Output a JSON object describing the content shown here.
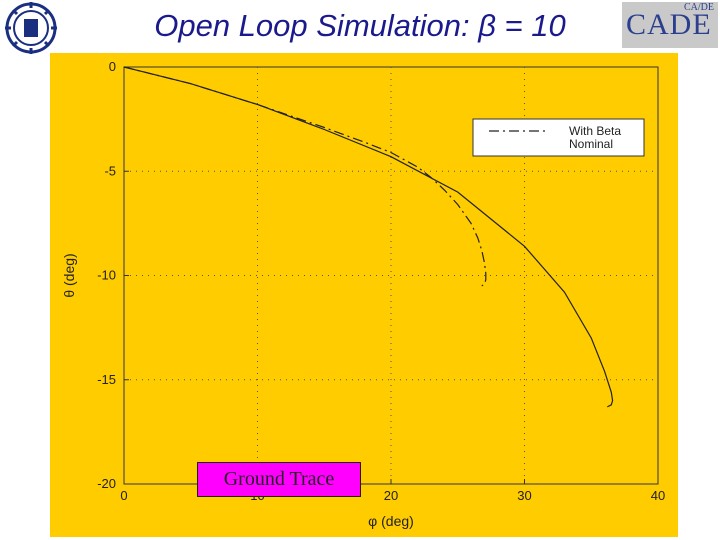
{
  "slide": {
    "title": "Open Loop Simulation: β = 10",
    "logo_right_text": "CADE",
    "logo_right_small": "CA/DE",
    "annotation": "Ground Trace"
  },
  "chart_data": {
    "type": "line",
    "xlabel": "φ (deg)",
    "ylabel": "θ (deg)",
    "xlim": [
      0,
      40
    ],
    "ylim": [
      -20,
      0
    ],
    "xticks": [
      0,
      10,
      20,
      30,
      40
    ],
    "yticks": [
      0,
      -5,
      -10,
      -15,
      -20
    ],
    "grid": true,
    "legend_position": "top-right",
    "series": [
      {
        "name": "With Beta",
        "style": "dashed",
        "x": [
          0,
          5,
          10,
          15,
          18,
          20,
          22,
          23,
          24,
          25,
          26,
          26.5,
          26.8,
          27,
          27.1,
          27.1,
          27.0,
          26.8
        ],
        "y": [
          0,
          -0.8,
          -1.8,
          -2.9,
          -3.6,
          -4.1,
          -4.8,
          -5.3,
          -5.9,
          -6.6,
          -7.5,
          -8.2,
          -8.8,
          -9.4,
          -9.9,
          -10.2,
          -10.4,
          -10.5
        ]
      },
      {
        "name": "Nominal",
        "style": "solid",
        "x": [
          0,
          5,
          10,
          15,
          20,
          25,
          30,
          33,
          35,
          36,
          36.5,
          36.6,
          36.5,
          36.2
        ],
        "y": [
          0,
          -0.8,
          -1.8,
          -3.0,
          -4.3,
          -6.0,
          -8.6,
          -10.8,
          -13.0,
          -14.6,
          -15.6,
          -16.0,
          -16.2,
          -16.3
        ]
      }
    ]
  }
}
